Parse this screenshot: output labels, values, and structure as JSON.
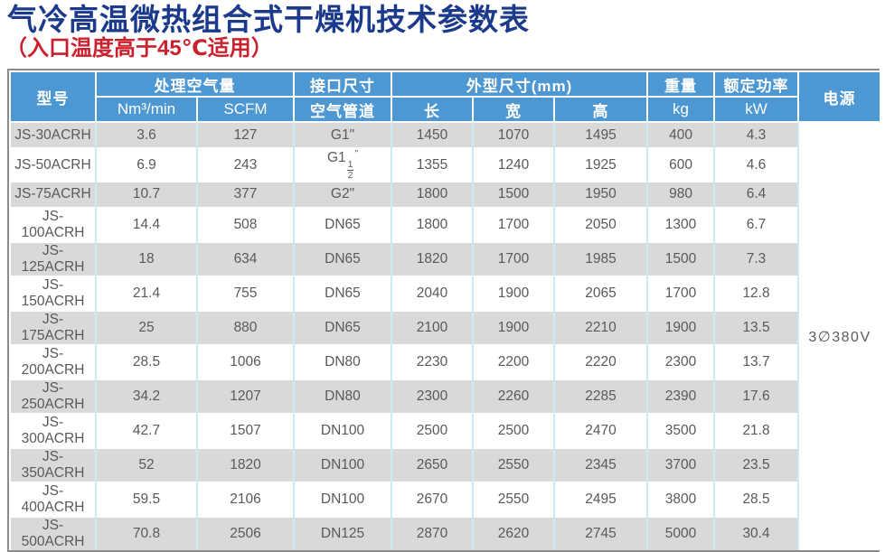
{
  "page": {
    "title": "气冷高温微热组合式干燥机技术参数表",
    "subtitle": "（入口温度高于45℃适用）"
  },
  "colors": {
    "title_blue": "#1b3a8c",
    "subtitle_red": "#cb202d",
    "header_blue": "#4d97d3",
    "row_stripe_gray": "#d9d9d9",
    "body_text_gray": "#595959",
    "grid_line_blue": "#cfe8f6",
    "outer_border_gray": "#8c8c8c"
  },
  "table": {
    "header": {
      "model": "型号",
      "air_flow_group": "处理空气量",
      "air_flow_unit_1": "Nm³/min",
      "air_flow_unit_2": "SCFM",
      "port_group": "接口尺寸",
      "port_sub": "空气管道",
      "dims_group": "外型尺寸(mm)",
      "dim_length": "长",
      "dim_width": "宽",
      "dim_height": "高",
      "weight_group": "重量",
      "weight_unit": "kg",
      "power_group": "额定功率",
      "power_unit": "kW",
      "supply": "电源"
    },
    "supply_value": "3∅380V",
    "rows": [
      {
        "model": "JS-30ACRH",
        "nm3": "3.6",
        "scfm": "127",
        "pipe": "G1\"",
        "len": "1450",
        "wid": "1070",
        "hei": "1495",
        "kg": "400",
        "kw": "4.3"
      },
      {
        "model": "JS-50ACRH",
        "nm3": "6.9",
        "scfm": "243",
        "pipe": "G1 1/2\"",
        "len": "1355",
        "wid": "1240",
        "hei": "1925",
        "kg": "600",
        "kw": "4.6"
      },
      {
        "model": "JS-75ACRH",
        "nm3": "10.7",
        "scfm": "377",
        "pipe": "G2\"",
        "len": "1800",
        "wid": "1500",
        "hei": "1950",
        "kg": "980",
        "kw": "6.4"
      },
      {
        "model": "JS-100ACRH",
        "nm3": "14.4",
        "scfm": "508",
        "pipe": "DN65",
        "len": "1800",
        "wid": "1700",
        "hei": "2050",
        "kg": "1300",
        "kw": "6.7"
      },
      {
        "model": "JS-125ACRH",
        "nm3": "18",
        "scfm": "634",
        "pipe": "DN65",
        "len": "1820",
        "wid": "1700",
        "hei": "1985",
        "kg": "1500",
        "kw": "7.3"
      },
      {
        "model": "JS-150ACRH",
        "nm3": "21.4",
        "scfm": "755",
        "pipe": "DN65",
        "len": "2040",
        "wid": "1900",
        "hei": "2065",
        "kg": "1700",
        "kw": "12.8"
      },
      {
        "model": "JS-175ACRH",
        "nm3": "25",
        "scfm": "880",
        "pipe": "DN65",
        "len": "2100",
        "wid": "1900",
        "hei": "2210",
        "kg": "1900",
        "kw": "13.5"
      },
      {
        "model": "JS-200ACRH",
        "nm3": "28.5",
        "scfm": "1006",
        "pipe": "DN80",
        "len": "2230",
        "wid": "2200",
        "hei": "2220",
        "kg": "2300",
        "kw": "13.7"
      },
      {
        "model": "JS-250ACRH",
        "nm3": "34.2",
        "scfm": "1207",
        "pipe": "DN80",
        "len": "2300",
        "wid": "2260",
        "hei": "2285",
        "kg": "2390",
        "kw": "17.6"
      },
      {
        "model": "JS-300ACRH",
        "nm3": "42.7",
        "scfm": "1507",
        "pipe": "DN100",
        "len": "2500",
        "wid": "2500",
        "hei": "2470",
        "kg": "3500",
        "kw": "21.8"
      },
      {
        "model": "JS-350ACRH",
        "nm3": "52",
        "scfm": "1820",
        "pipe": "DN100",
        "len": "2650",
        "wid": "2550",
        "hei": "2345",
        "kg": "3700",
        "kw": "23.5"
      },
      {
        "model": "JS-400ACRH",
        "nm3": "59.5",
        "scfm": "2106",
        "pipe": "DN100",
        "len": "2670",
        "wid": "2550",
        "hei": "2495",
        "kg": "3800",
        "kw": "28.5"
      },
      {
        "model": "JS-500ACRH",
        "nm3": "70.8",
        "scfm": "2506",
        "pipe": "DN125",
        "len": "2870",
        "wid": "2620",
        "hei": "2745",
        "kg": "5000",
        "kw": "30.4"
      }
    ]
  }
}
